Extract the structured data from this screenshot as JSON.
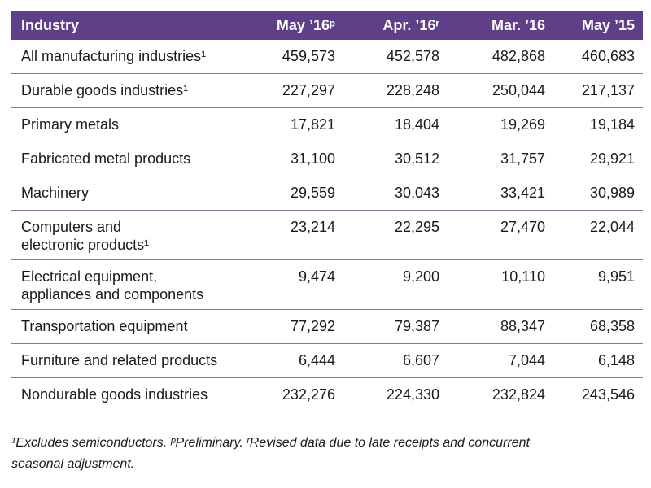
{
  "table": {
    "headers": [
      "Industry",
      "May ’16ᵖ",
      "Apr. ’16ʳ",
      "Mar. ’16",
      "May ’15"
    ],
    "rows": [
      {
        "industry": [
          "All manufacturing industries¹"
        ],
        "values": [
          "459,573",
          "452,578",
          "482,868",
          "460,683"
        ]
      },
      {
        "industry": [
          "Durable goods industries¹"
        ],
        "values": [
          "227,297",
          "228,248",
          "250,044",
          "217,137"
        ]
      },
      {
        "industry": [
          "Primary metals"
        ],
        "values": [
          "17,821",
          "18,404",
          "19,269",
          "19,184"
        ]
      },
      {
        "industry": [
          "Fabricated metal products"
        ],
        "values": [
          "31,100",
          "30,512",
          "31,757",
          "29,921"
        ]
      },
      {
        "industry": [
          "Machinery"
        ],
        "values": [
          "29,559",
          "30,043",
          "33,421",
          "30,989"
        ]
      },
      {
        "industry": [
          "Computers and",
          "electronic products¹"
        ],
        "values": [
          "23,214",
          "22,295",
          "27,470",
          "22,044"
        ]
      },
      {
        "industry": [
          "Electrical equipment,",
          "appliances and components"
        ],
        "values": [
          "9,474",
          "9,200",
          "10,110",
          "9,951"
        ]
      },
      {
        "industry": [
          "Transportation equipment"
        ],
        "values": [
          "77,292",
          "79,387",
          "88,347",
          "68,358"
        ]
      },
      {
        "industry": [
          "Furniture and related products"
        ],
        "values": [
          "6,444",
          "6,607",
          "7,044",
          "6,148"
        ]
      },
      {
        "industry": [
          "Nondurable goods industries"
        ],
        "values": [
          "232,276",
          "224,330",
          "232,824",
          "243,546"
        ]
      }
    ]
  },
  "footnote": {
    "line1": "¹Excludes semiconductors. ᵖPreliminary. ʳRevised data due to late receipts and concurrent",
    "line2": "seasonal adjustment."
  },
  "colors": {
    "header_bg": "#5f3f87",
    "row_divider": "#8b73b0"
  }
}
